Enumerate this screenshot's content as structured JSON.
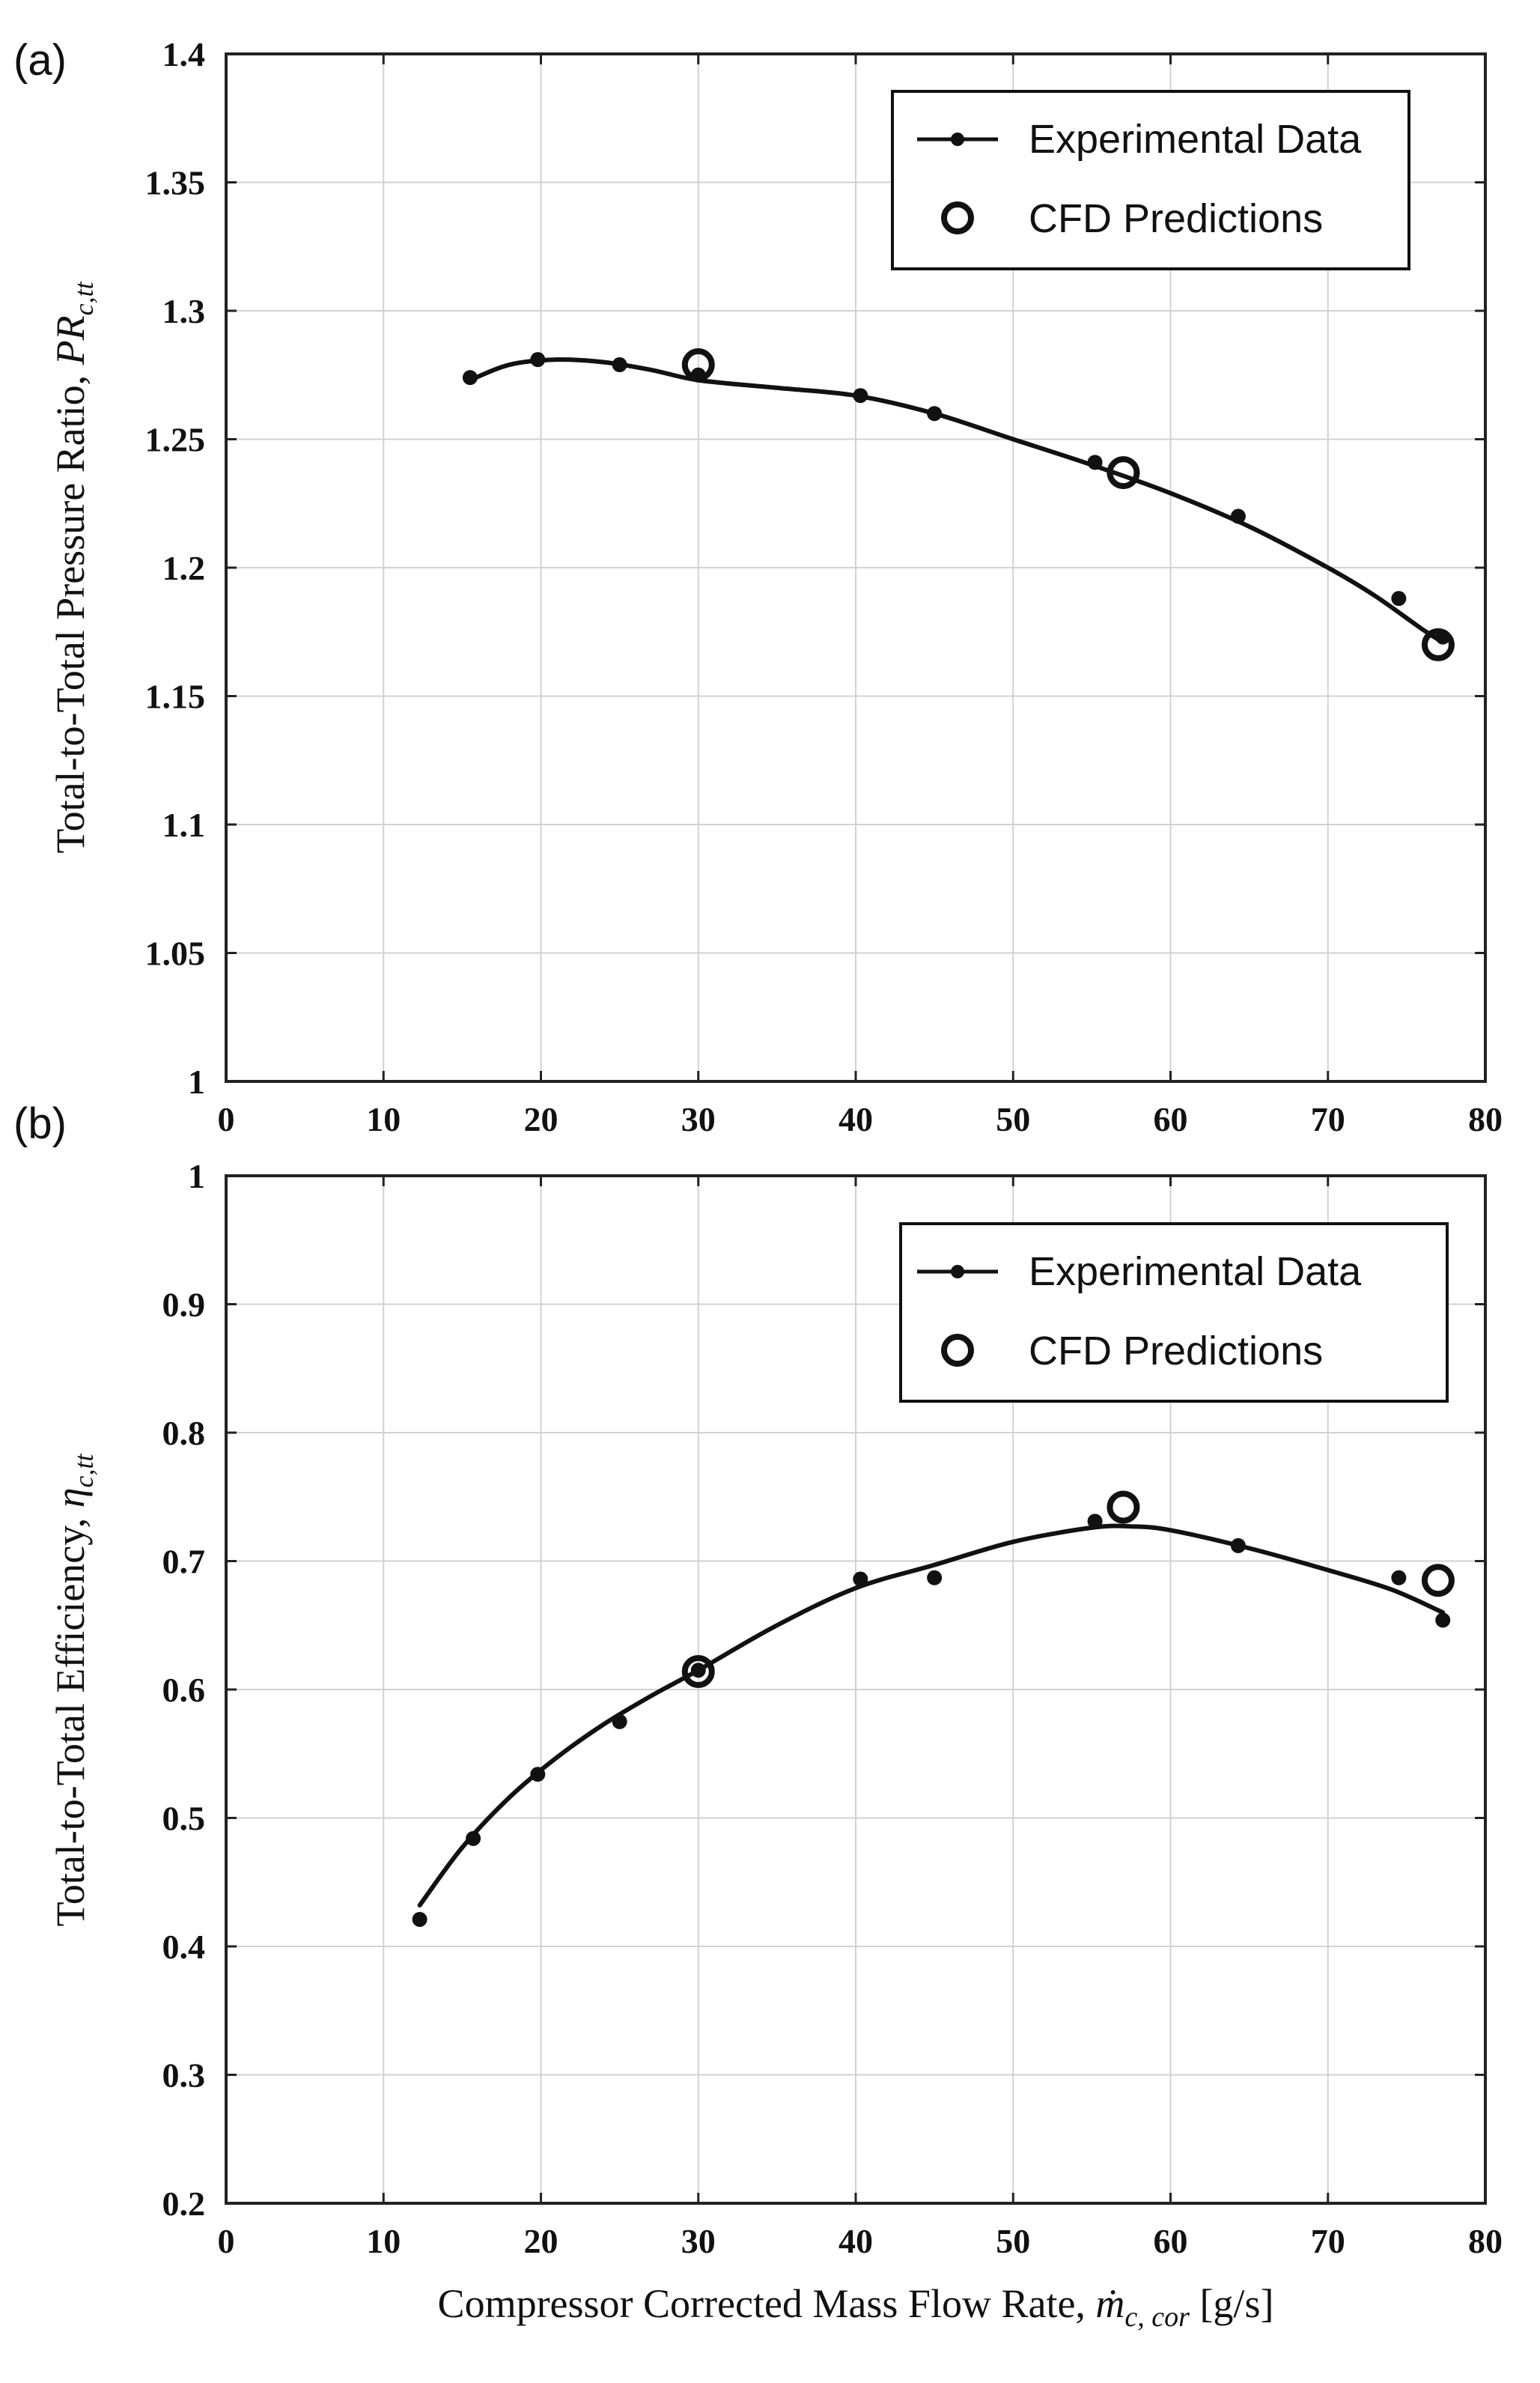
{
  "figure_labels": {
    "panel_a": "(a)",
    "panel_b": "(b)"
  },
  "chart_data": [
    {
      "type": "line",
      "panel": "(a)",
      "title": "",
      "xlabel": "",
      "ylabel_text": "Total-to-Total Pressure Ratio, ",
      "ylabel_symbol": "PR",
      "ylabel_subscript": "c,tt",
      "xlim": [
        0,
        80
      ],
      "ylim": [
        1,
        1.4
      ],
      "xticks": [
        "0",
        "10",
        "20",
        "30",
        "40",
        "50",
        "60",
        "70",
        "80"
      ],
      "yticks": [
        "1",
        "1.05",
        "1.1",
        "1.15",
        "1.2",
        "1.25",
        "1.3",
        "1.35",
        "1.4"
      ],
      "grid": true,
      "legend_position": "top-right",
      "series": [
        {
          "name": "Experimental Data",
          "marker": "filled-dot",
          "x": [
            15.5,
            19.8,
            25.0,
            30.0,
            40.3,
            45.0,
            55.2,
            64.3,
            74.5,
            77.3
          ],
          "y": [
            1.274,
            1.281,
            1.279,
            1.275,
            1.267,
            1.26,
            1.241,
            1.22,
            1.188,
            1.173
          ],
          "fit_x": [
            15.5,
            18,
            21,
            24,
            27,
            30,
            35,
            40,
            45,
            50,
            55,
            60,
            65,
            70,
            73,
            76,
            77.3
          ],
          "fit_y": [
            1.273,
            1.279,
            1.281,
            1.28,
            1.277,
            1.273,
            1.27,
            1.267,
            1.26,
            1.25,
            1.24,
            1.229,
            1.216,
            1.2,
            1.189,
            1.176,
            1.171
          ]
        },
        {
          "name": "CFD Predictions",
          "marker": "open-circle",
          "x": [
            30.0,
            57.0,
            77.0
          ],
          "y": [
            1.279,
            1.237,
            1.17
          ]
        }
      ]
    },
    {
      "type": "line",
      "panel": "(b)",
      "title": "",
      "xlabel_text": "Compressor Corrected Mass Flow Rate, ",
      "xlabel_symbol": "ṁ",
      "xlabel_subscript": "c, cor",
      "xlabel_unit": " [g/s]",
      "ylabel_text": "Total-to-Total Efficiency, ",
      "ylabel_symbol": "η",
      "ylabel_subscript": "c,tt",
      "xlim": [
        0,
        80
      ],
      "ylim": [
        0.2,
        1
      ],
      "xticks": [
        "0",
        "10",
        "20",
        "30",
        "40",
        "50",
        "60",
        "70",
        "80"
      ],
      "yticks": [
        "0.2",
        "0.3",
        "0.4",
        "0.5",
        "0.6",
        "0.7",
        "0.8",
        "0.9",
        "1"
      ],
      "grid": true,
      "legend_position": "top-right",
      "series": [
        {
          "name": "Experimental Data",
          "marker": "filled-dot",
          "x": [
            12.3,
            15.7,
            19.8,
            25.0,
            30.0,
            40.3,
            45.0,
            55.2,
            64.3,
            74.5,
            77.3
          ],
          "y": [
            0.421,
            0.484,
            0.534,
            0.575,
            0.615,
            0.686,
            0.687,
            0.731,
            0.712,
            0.687,
            0.654
          ],
          "fit_x": [
            12.3,
            15,
            18,
            21,
            24,
            27,
            30,
            35,
            40,
            45,
            50,
            55,
            57.5,
            60,
            65,
            70,
            74,
            77.3
          ],
          "fit_y": [
            0.432,
            0.477,
            0.516,
            0.547,
            0.573,
            0.595,
            0.615,
            0.65,
            0.679,
            0.697,
            0.715,
            0.726,
            0.727,
            0.724,
            0.71,
            0.693,
            0.678,
            0.66
          ]
        },
        {
          "name": "CFD Predictions",
          "marker": "open-circle",
          "x": [
            30.0,
            57.0,
            77.0
          ],
          "y": [
            0.614,
            0.742,
            0.685
          ]
        }
      ]
    }
  ]
}
